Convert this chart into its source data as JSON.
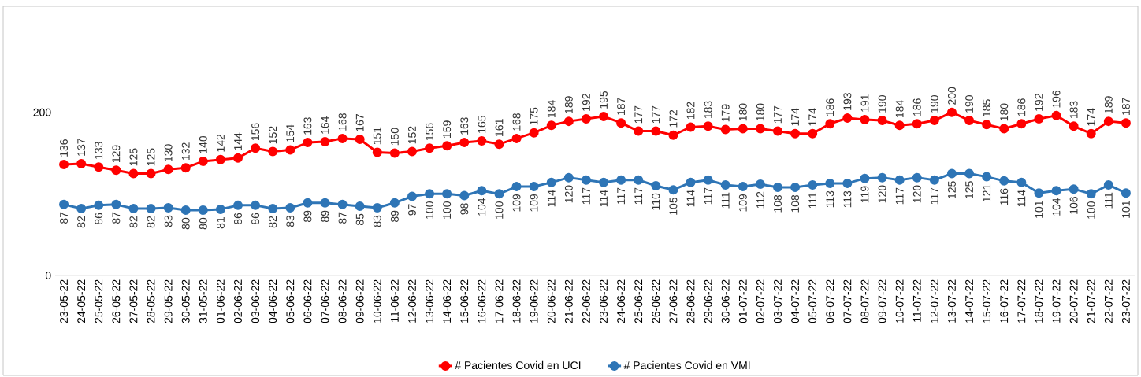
{
  "chart_data": {
    "type": "line",
    "categories": [
      "23-05-22",
      "24-05-22",
      "25-05-22",
      "26-05-22",
      "27-05-22",
      "28-05-22",
      "29-05-22",
      "30-05-22",
      "31-05-22",
      "01-06-22",
      "02-06-22",
      "03-06-22",
      "04-06-22",
      "05-06-22",
      "06-06-22",
      "07-06-22",
      "08-06-22",
      "09-06-22",
      "10-06-22",
      "11-06-22",
      "12-06-22",
      "13-06-22",
      "14-06-22",
      "15-06-22",
      "16-06-22",
      "17-06-22",
      "18-06-22",
      "19-06-22",
      "20-06-22",
      "21-06-22",
      "22-06-22",
      "23-06-22",
      "24-06-22",
      "25-06-22",
      "26-06-22",
      "27-06-22",
      "28-06-22",
      "29-06-22",
      "30-06-22",
      "01-07-22",
      "02-07-22",
      "03-07-22",
      "04-07-22",
      "05-07-22",
      "06-07-22",
      "07-07-22",
      "08-07-22",
      "09-07-22",
      "10-07-22",
      "11-07-22",
      "12-07-22",
      "13-07-22",
      "14-07-22",
      "15-07-22",
      "16-07-22",
      "17-07-22",
      "18-07-22",
      "19-07-22",
      "20-07-22",
      "21-07-22",
      "22-07-22",
      "23-07-22"
    ],
    "series": [
      {
        "name": "# Pacientes Covid en UCI",
        "color": "#ff0000",
        "values": [
          136,
          137,
          133,
          129,
          125,
          125,
          130,
          132,
          140,
          142,
          144,
          156,
          152,
          154,
          163,
          164,
          168,
          167,
          151,
          150,
          152,
          156,
          159,
          163,
          165,
          161,
          168,
          175,
          184,
          189,
          192,
          195,
          187,
          177,
          177,
          172,
          182,
          183,
          179,
          180,
          180,
          177,
          174,
          174,
          186,
          193,
          191,
          190,
          184,
          186,
          190,
          200,
          190,
          185,
          180,
          186,
          192,
          196,
          183,
          174,
          189,
          187
        ]
      },
      {
        "name": "# Pacientes Covid en VMI",
        "color": "#2e75b6",
        "values": [
          87,
          82,
          86,
          87,
          82,
          82,
          83,
          80,
          80,
          81,
          86,
          86,
          82,
          83,
          89,
          89,
          87,
          85,
          83,
          89,
          97,
          100,
          100,
          98,
          104,
          100,
          109,
          109,
          114,
          120,
          117,
          114,
          117,
          117,
          110,
          105,
          114,
          117,
          111,
          109,
          112,
          108,
          108,
          111,
          113,
          113,
          119,
          120,
          117,
          120,
          117,
          125,
          125,
          121,
          116,
          114,
          101,
          104,
          106,
          100,
          111,
          101
        ]
      }
    ],
    "ylim": [
      0,
      330
    ],
    "yticks": [
      0,
      200
    ],
    "grid": false,
    "legend": "bottom",
    "marker": "circle",
    "line_style": "solid",
    "data_labels": true
  }
}
